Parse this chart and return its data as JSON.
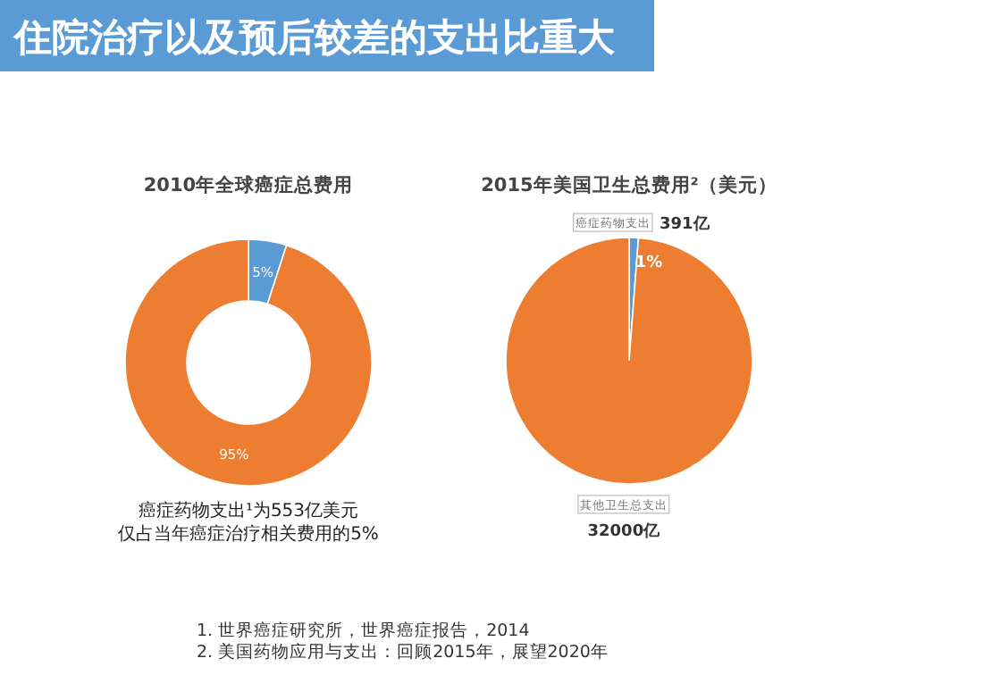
{
  "chart_data": [
    {
      "type": "other",
      "title": "住院治疗以及预后较差的支出比重大",
      "annotations": [
        "1.   世界癌症研究所，世界癌症报告，2014",
        "2.   美国药物应用与支出：回顾2015年，展望2020年"
      ]
    },
    {
      "type": "donut",
      "title": "2010年全球癌症总费用",
      "categories": [
        null,
        null
      ],
      "values": [
        5,
        95
      ],
      "colors": [
        "#5b9bd5",
        "#ed7d31"
      ],
      "value_labels": [
        "5%",
        "95%"
      ],
      "annotations": [
        "癌症药物支出¹为553亿美元",
        "仅占当年癌症治疗相关费用的5%"
      ]
    },
    {
      "type": "pie",
      "title": "2015年美国卫生总费用²（美元）",
      "categories": [
        "癌症药物支出",
        "其他卫生总支出"
      ],
      "values": [
        391,
        32000
      ],
      "colors": [
        "#5b9bd5",
        "#ed7d31"
      ],
      "value_labels": [
        "391亿",
        "32000亿"
      ],
      "annotations": [
        {
          "text": "1%",
          "x": "癌症药物支出"
        }
      ]
    }
  ]
}
